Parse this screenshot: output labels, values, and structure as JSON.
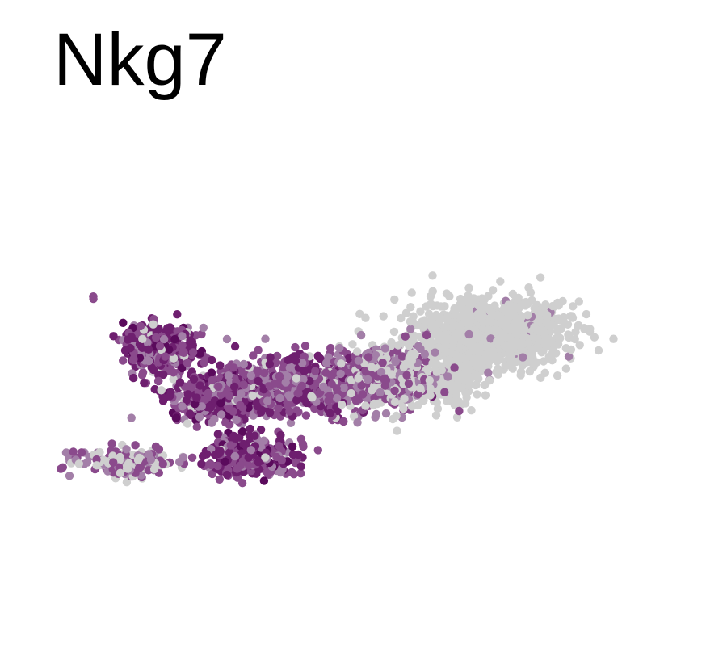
{
  "chart_data": {
    "type": "scatter",
    "title": "Nkg7",
    "xlabel": "",
    "ylabel": "",
    "xlim": [
      0,
      100
    ],
    "ylim": [
      0,
      100
    ],
    "grid": false,
    "axes_visible": false,
    "legend": "none",
    "colors": {
      "zero": "#cfcfcf",
      "low": "#a37fa8",
      "mid": "#8a4a8c",
      "high": "#6e1f6f",
      "max": "#5a0a5c"
    },
    "regions": [
      {
        "name": "outlier",
        "x": 1.5,
        "y": 93.0,
        "sx": 0.5,
        "sy": 0.5,
        "n": 3,
        "level": "mixed"
      },
      {
        "name": "upper-left-arm",
        "x": 15.0,
        "y": 74.0,
        "sx": 3.5,
        "sy": 4.5,
        "n": 380,
        "level": "high"
      },
      {
        "name": "central-cross",
        "x": 28.0,
        "y": 57.0,
        "sx": 5.5,
        "sy": 5.0,
        "n": 520,
        "level": "high"
      },
      {
        "name": "lower-foot",
        "x": 33.0,
        "y": 34.0,
        "sx": 4.5,
        "sy": 3.5,
        "n": 320,
        "level": "high"
      },
      {
        "name": "bottom-left-tail",
        "x": 9.0,
        "y": 32.0,
        "sx": 5.0,
        "sy": 2.5,
        "n": 200,
        "level": "mixed"
      },
      {
        "name": "middle-band",
        "x": 46.0,
        "y": 61.0,
        "sx": 8.0,
        "sy": 5.5,
        "n": 700,
        "level": "mid"
      },
      {
        "name": "right-transition",
        "x": 62.0,
        "y": 64.0,
        "sx": 4.5,
        "sy": 6.0,
        "n": 360,
        "level": "low"
      },
      {
        "name": "right-lobe",
        "x": 81.0,
        "y": 80.0,
        "sx": 7.5,
        "sy": 6.0,
        "n": 1100,
        "level": "zero"
      },
      {
        "name": "right-lobe-tail",
        "x": 73.0,
        "y": 62.0,
        "sx": 2.5,
        "sy": 5.0,
        "n": 180,
        "level": "zero"
      }
    ]
  }
}
